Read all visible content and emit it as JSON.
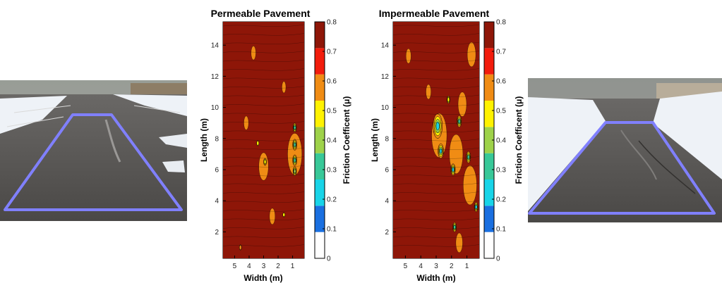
{
  "chart_data": [
    {
      "type": "heatmap",
      "title": "Permeable Pavement",
      "xlabel": "Width (m)",
      "ylabel": "Length (m)",
      "colorbar_label": "Friction Coefficent (μ)",
      "x_ticks": [
        "5",
        "4",
        "3",
        "2",
        "1"
      ],
      "y_ticks": [
        "2",
        "4",
        "6",
        "8",
        "10",
        "12",
        "14"
      ],
      "xlim": [
        5.8,
        0.2
      ],
      "ylim": [
        0.3,
        15.5
      ],
      "colorbar_ticks": [
        "0",
        "0.1",
        "0.2",
        "0.3",
        "0.4",
        "0.5",
        "0.6",
        "0.7",
        "0.8"
      ],
      "clim": [
        0,
        0.8
      ],
      "colormap": [
        "#ffffff",
        "#1a6fe0",
        "#18d4e8",
        "#38c898",
        "#9ed24a",
        "#fff200",
        "#f08c14",
        "#f21c0c",
        "#8e1608"
      ],
      "background_value": 0.75,
      "hotspots": [
        {
          "x": 0.85,
          "y": 8.7,
          "r": 0.1,
          "value": 0.35
        },
        {
          "x": 0.85,
          "y": 7.6,
          "r": 0.12,
          "value": 0.3
        },
        {
          "x": 0.85,
          "y": 6.6,
          "r": 0.12,
          "value": 0.3
        },
        {
          "x": 0.85,
          "y": 5.9,
          "r": 0.1,
          "value": 0.38
        },
        {
          "x": 2.9,
          "y": 6.5,
          "r": 0.08,
          "value": 0.45
        },
        {
          "x": 3.4,
          "y": 7.7,
          "r": 0.06,
          "value": 0.5
        },
        {
          "x": 4.6,
          "y": 1.0,
          "r": 0.06,
          "value": 0.55
        },
        {
          "x": 1.6,
          "y": 3.1,
          "r": 0.05,
          "value": 0.5
        }
      ],
      "low_patches": [
        {
          "x": 0.85,
          "y": 7.0,
          "r": 0.9,
          "value": 0.6
        },
        {
          "x": 3.0,
          "y": 6.2,
          "r": 0.6,
          "value": 0.6
        },
        {
          "x": 4.2,
          "y": 9.0,
          "r": 0.3,
          "value": 0.6
        },
        {
          "x": 2.4,
          "y": 3.0,
          "r": 0.35,
          "value": 0.6
        },
        {
          "x": 3.7,
          "y": 13.5,
          "r": 0.3,
          "value": 0.6
        },
        {
          "x": 1.6,
          "y": 11.3,
          "r": 0.25,
          "value": 0.6
        }
      ]
    },
    {
      "type": "heatmap",
      "title": "Impermeable Pavement",
      "xlabel": "Width (m)",
      "ylabel": "Length (m)",
      "colorbar_label": "Friction Coefficent (μ)",
      "x_ticks": [
        "5",
        "4",
        "3",
        "2",
        "1"
      ],
      "y_ticks": [
        "2",
        "4",
        "6",
        "8",
        "10",
        "12",
        "14"
      ],
      "xlim": [
        5.8,
        0.2
      ],
      "ylim": [
        0.3,
        15.5
      ],
      "colorbar_ticks": [
        "0",
        "0.1",
        "0.2",
        "0.3",
        "0.4",
        "0.5",
        "0.6",
        "0.7",
        "0.8"
      ],
      "clim": [
        0,
        0.8
      ],
      "colormap": [
        "#ffffff",
        "#1a6fe0",
        "#18d4e8",
        "#38c898",
        "#9ed24a",
        "#fff200",
        "#f08c14",
        "#f21c0c",
        "#8e1608"
      ],
      "background_value": 0.75,
      "hotspots": [
        {
          "x": 2.9,
          "y": 8.8,
          "r": 0.25,
          "value": 0.2
        },
        {
          "x": 2.7,
          "y": 7.2,
          "r": 0.15,
          "value": 0.25
        },
        {
          "x": 1.9,
          "y": 6.0,
          "r": 0.12,
          "value": 0.25
        },
        {
          "x": 1.5,
          "y": 9.1,
          "r": 0.12,
          "value": 0.3
        },
        {
          "x": 0.9,
          "y": 6.8,
          "r": 0.12,
          "value": 0.3
        },
        {
          "x": 0.4,
          "y": 3.6,
          "r": 0.1,
          "value": 0.2
        },
        {
          "x": 1.8,
          "y": 2.3,
          "r": 0.1,
          "value": 0.3
        },
        {
          "x": 2.2,
          "y": 10.5,
          "r": 0.08,
          "value": 0.45
        }
      ],
      "low_patches": [
        {
          "x": 2.8,
          "y": 8.2,
          "r": 0.9,
          "value": 0.55
        },
        {
          "x": 1.7,
          "y": 7.0,
          "r": 0.8,
          "value": 0.55
        },
        {
          "x": 0.8,
          "y": 5.0,
          "r": 0.8,
          "value": 0.55
        },
        {
          "x": 1.3,
          "y": 10.2,
          "r": 0.5,
          "value": 0.6
        },
        {
          "x": 0.7,
          "y": 13.4,
          "r": 0.5,
          "value": 0.6
        },
        {
          "x": 3.5,
          "y": 11.0,
          "r": 0.3,
          "value": 0.6
        },
        {
          "x": 4.8,
          "y": 13.3,
          "r": 0.3,
          "value": 0.6
        },
        {
          "x": 1.5,
          "y": 1.3,
          "r": 0.4,
          "value": 0.6
        }
      ]
    }
  ],
  "photos": {
    "outline_color": "#8080ff",
    "asphalt_color": "#4e4c4a",
    "snow_color": "#eef2f7",
    "sky_color": "#d7dbe1"
  }
}
